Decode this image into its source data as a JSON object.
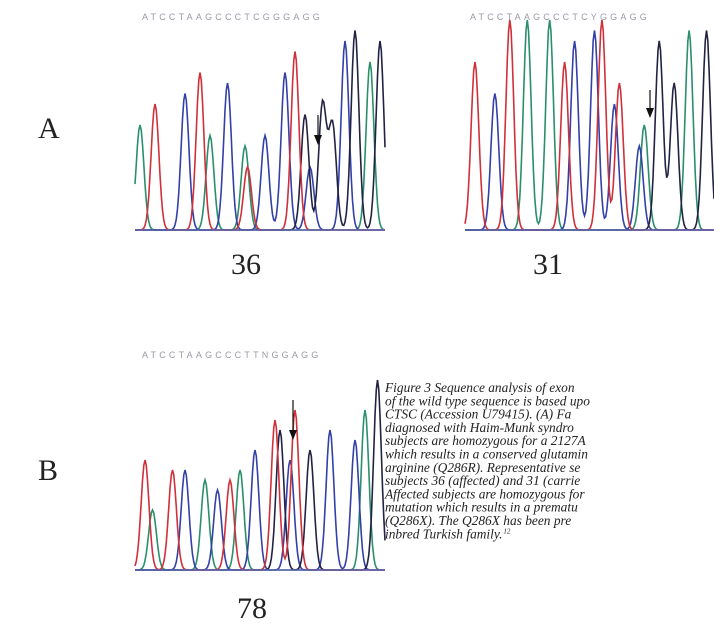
{
  "panels": [
    {
      "label": "A"
    },
    {
      "label": "B"
    }
  ],
  "traces": [
    {
      "sequence": "ATCCTAAGCCCTCGGGAGG",
      "subject": "36"
    },
    {
      "sequence": "ATCCTAAGCCCTCYGGAGG",
      "subject": "31"
    },
    {
      "sequence": "ATCCTAAGCCCTTNGGAGG",
      "subject": "78"
    }
  ],
  "caption": {
    "lines": [
      "Figure 3    Sequence analysis of exon",
      "of the wild type sequence is based upo",
      "CTSC (Accession U79415). (A) Fa",
      "diagnosed with Haim-Munk syndro",
      "subjects are homozygous for a 2127A",
      "which results in a conserved glutamin",
      "arginine (Q286R). Representative se",
      "subjects 36 (affected) and 31 (carrie",
      "Affected subjects are homozygous for",
      "mutation which results in a prematu",
      "(Q286X). The Q286X has been pre",
      "inbred Turkish family."
    ],
    "reference": "12"
  }
}
